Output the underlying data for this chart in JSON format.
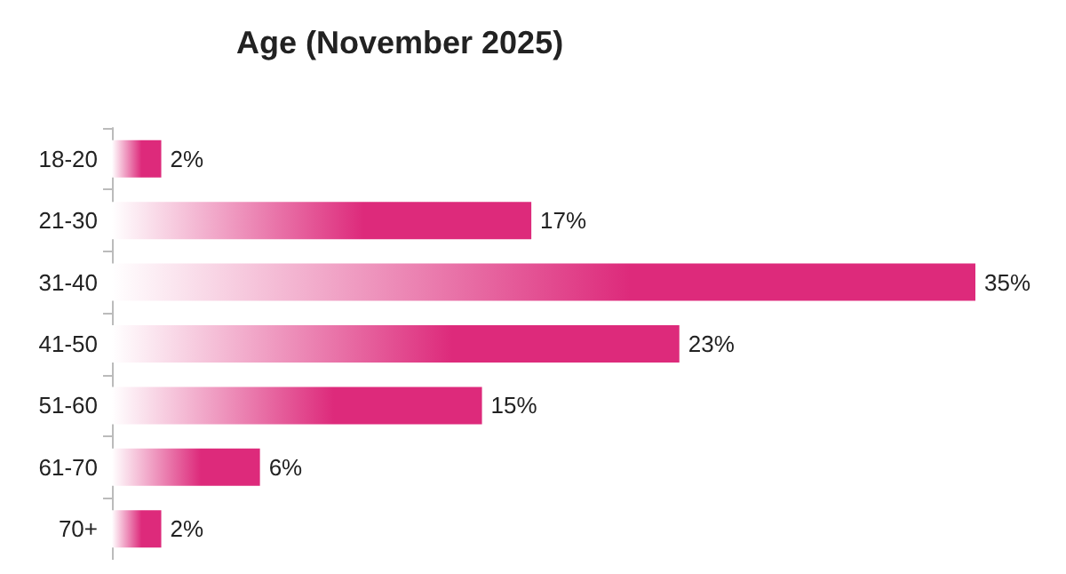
{
  "chart_data": {
    "type": "bar",
    "orientation": "horizontal",
    "title": "Age (November 2025)",
    "categories": [
      "18-20",
      "21-30",
      "31-40",
      "41-50",
      "51-60",
      "61-70",
      "70+"
    ],
    "values": [
      2,
      17,
      35,
      23,
      15,
      6,
      2
    ],
    "value_labels": [
      "2%",
      "17%",
      "35%",
      "23%",
      "15%",
      "6%",
      "2%"
    ],
    "color": "#dd2a7b"
  }
}
